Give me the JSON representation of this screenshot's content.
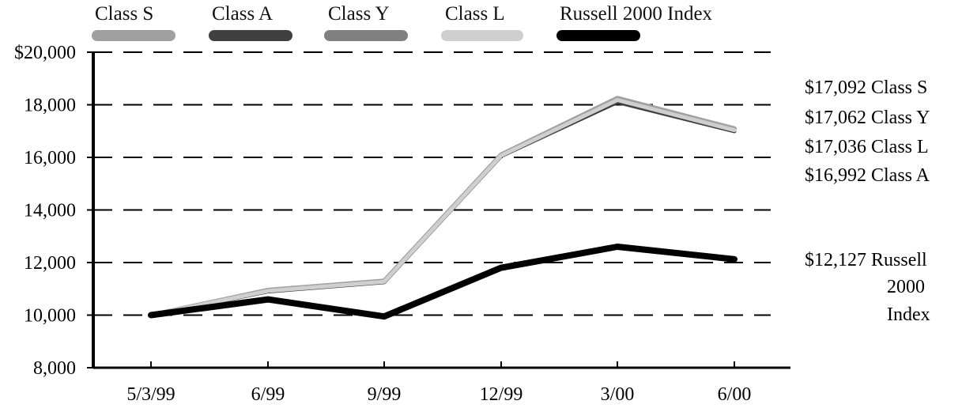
{
  "chart_data": {
    "type": "line",
    "title": "",
    "xlabel": "",
    "ylabel": "",
    "categories": [
      "5/3/99",
      "6/99",
      "9/99",
      "12/99",
      "3/00",
      "6/00"
    ],
    "ylim": [
      8000,
      20000
    ],
    "yticks": [
      "$20,000",
      "18,000",
      "16,000",
      "14,000",
      "12,000",
      "10,000",
      "8,000"
    ],
    "ytick_values": [
      20000,
      18000,
      16000,
      14000,
      12000,
      10000,
      8000
    ],
    "grid": "dashed horizontal",
    "legend_position": "top",
    "series": [
      {
        "name": "Class S",
        "color": "#a0a0a0",
        "values": [
          10000,
          10950,
          11300,
          16100,
          18250,
          17092
        ]
      },
      {
        "name": "Class A",
        "color": "#404040",
        "values": [
          10000,
          10900,
          11250,
          16050,
          18100,
          16992
        ]
      },
      {
        "name": "Class Y",
        "color": "#808080",
        "values": [
          10000,
          10930,
          11280,
          16080,
          18200,
          17062
        ]
      },
      {
        "name": "Class L",
        "color": "#cfcfcf",
        "values": [
          10000,
          10920,
          11270,
          16070,
          18180,
          17036
        ]
      },
      {
        "name": "Russell 2000 Index",
        "color": "#000000",
        "values": [
          10000,
          10600,
          9950,
          11800,
          12600,
          12127
        ]
      }
    ],
    "end_labels": [
      {
        "value": "$17,092",
        "name": "Class S"
      },
      {
        "value": "$17,062",
        "name": "Class Y"
      },
      {
        "value": "$17,036",
        "name": "Class L"
      },
      {
        "value": "$16,992",
        "name": "Class A"
      }
    ],
    "russell_end_label": {
      "value": "$12,127",
      "lines": [
        "Russell",
        "2000",
        "Index"
      ]
    }
  }
}
